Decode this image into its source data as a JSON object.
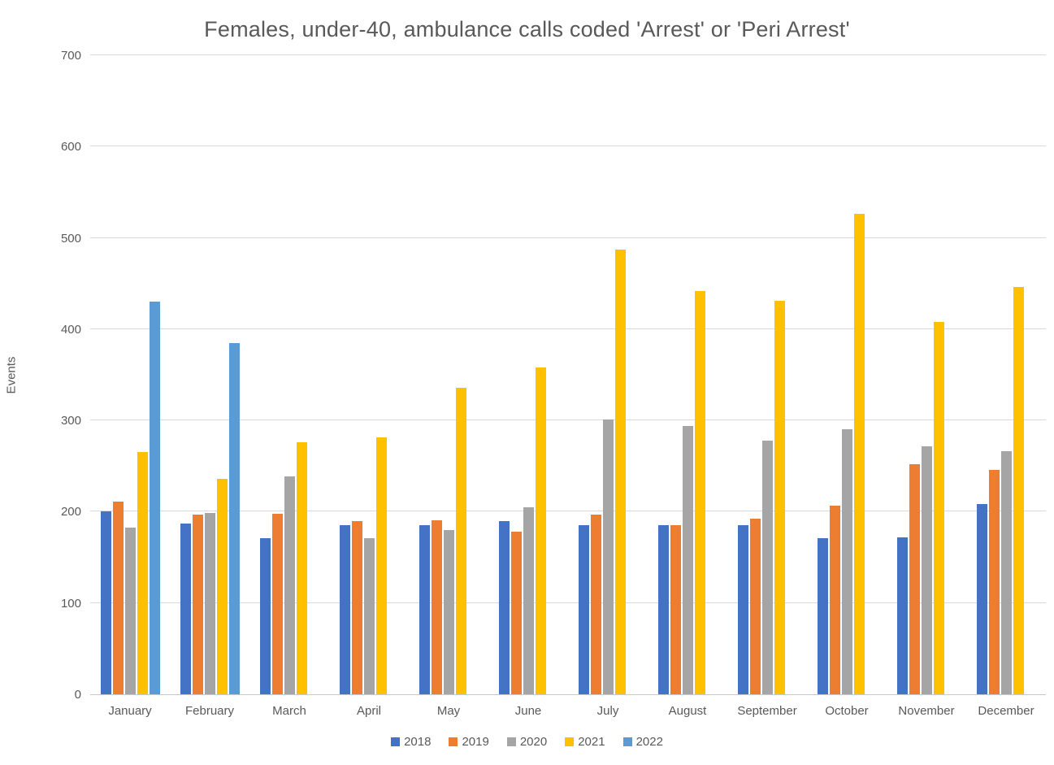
{
  "chart_data": {
    "type": "bar",
    "title": "Females, under-40, ambulance calls coded 'Arrest' or 'Peri Arrest'",
    "xlabel": "",
    "ylabel": "Events",
    "ylim": [
      0,
      700
    ],
    "ytick_interval": 100,
    "grid": true,
    "legend_position": "bottom",
    "categories": [
      "January",
      "February",
      "March",
      "April",
      "May",
      "June",
      "July",
      "August",
      "September",
      "October",
      "November",
      "December"
    ],
    "series": [
      {
        "name": "2018",
        "color": "#4472C4",
        "values": [
          200,
          187,
          171,
          185,
          185,
          190,
          185,
          185,
          185,
          171,
          172,
          208
        ]
      },
      {
        "name": "2019",
        "color": "#ED7D31",
        "values": [
          211,
          197,
          198,
          190,
          191,
          178,
          197,
          185,
          192,
          207,
          252,
          246
        ]
      },
      {
        "name": "2020",
        "color": "#A5A5A5",
        "values": [
          183,
          199,
          239,
          171,
          180,
          205,
          301,
          294,
          278,
          290,
          272,
          266
        ]
      },
      {
        "name": "2021",
        "color": "#FFC000",
        "values": [
          265,
          236,
          276,
          281,
          336,
          358,
          487,
          442,
          431,
          526,
          408,
          446
        ]
      },
      {
        "name": "2022",
        "color": "#5B9BD5",
        "values": [
          430,
          385,
          null,
          null,
          null,
          null,
          null,
          null,
          null,
          null,
          null,
          null
        ]
      }
    ]
  },
  "colors": {
    "background": "#FFFFFF",
    "text": "#595959",
    "gridline": "#D9D9D9",
    "axis_line": "#C8C8C8"
  }
}
